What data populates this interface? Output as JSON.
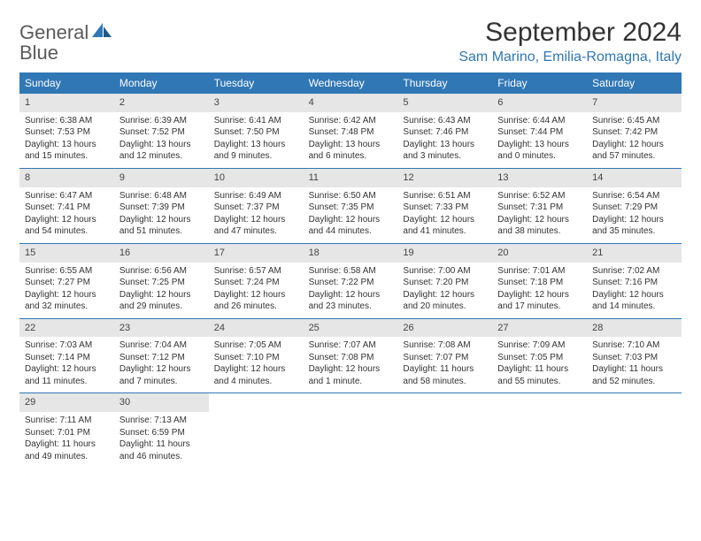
{
  "logo": {
    "general": "General",
    "blue": "Blue"
  },
  "title": "September 2024",
  "location": "Sam Marino, Emilia-Romagna, Italy",
  "colors": {
    "header_bg": "#3077b5",
    "header_text": "#ffffff",
    "date_bg": "#e6e6e6",
    "text": "#333333",
    "location": "#3077b5",
    "divider": "#3077b5"
  },
  "day_names": [
    "Sunday",
    "Monday",
    "Tuesday",
    "Wednesday",
    "Thursday",
    "Friday",
    "Saturday"
  ],
  "weeks": [
    [
      {
        "n": "1",
        "sr": "6:38 AM",
        "ss": "7:53 PM",
        "dl": "13 hours and 15 minutes."
      },
      {
        "n": "2",
        "sr": "6:39 AM",
        "ss": "7:52 PM",
        "dl": "13 hours and 12 minutes."
      },
      {
        "n": "3",
        "sr": "6:41 AM",
        "ss": "7:50 PM",
        "dl": "13 hours and 9 minutes."
      },
      {
        "n": "4",
        "sr": "6:42 AM",
        "ss": "7:48 PM",
        "dl": "13 hours and 6 minutes."
      },
      {
        "n": "5",
        "sr": "6:43 AM",
        "ss": "7:46 PM",
        "dl": "13 hours and 3 minutes."
      },
      {
        "n": "6",
        "sr": "6:44 AM",
        "ss": "7:44 PM",
        "dl": "13 hours and 0 minutes."
      },
      {
        "n": "7",
        "sr": "6:45 AM",
        "ss": "7:42 PM",
        "dl": "12 hours and 57 minutes."
      }
    ],
    [
      {
        "n": "8",
        "sr": "6:47 AM",
        "ss": "7:41 PM",
        "dl": "12 hours and 54 minutes."
      },
      {
        "n": "9",
        "sr": "6:48 AM",
        "ss": "7:39 PM",
        "dl": "12 hours and 51 minutes."
      },
      {
        "n": "10",
        "sr": "6:49 AM",
        "ss": "7:37 PM",
        "dl": "12 hours and 47 minutes."
      },
      {
        "n": "11",
        "sr": "6:50 AM",
        "ss": "7:35 PM",
        "dl": "12 hours and 44 minutes."
      },
      {
        "n": "12",
        "sr": "6:51 AM",
        "ss": "7:33 PM",
        "dl": "12 hours and 41 minutes."
      },
      {
        "n": "13",
        "sr": "6:52 AM",
        "ss": "7:31 PM",
        "dl": "12 hours and 38 minutes."
      },
      {
        "n": "14",
        "sr": "6:54 AM",
        "ss": "7:29 PM",
        "dl": "12 hours and 35 minutes."
      }
    ],
    [
      {
        "n": "15",
        "sr": "6:55 AM",
        "ss": "7:27 PM",
        "dl": "12 hours and 32 minutes."
      },
      {
        "n": "16",
        "sr": "6:56 AM",
        "ss": "7:25 PM",
        "dl": "12 hours and 29 minutes."
      },
      {
        "n": "17",
        "sr": "6:57 AM",
        "ss": "7:24 PM",
        "dl": "12 hours and 26 minutes."
      },
      {
        "n": "18",
        "sr": "6:58 AM",
        "ss": "7:22 PM",
        "dl": "12 hours and 23 minutes."
      },
      {
        "n": "19",
        "sr": "7:00 AM",
        "ss": "7:20 PM",
        "dl": "12 hours and 20 minutes."
      },
      {
        "n": "20",
        "sr": "7:01 AM",
        "ss": "7:18 PM",
        "dl": "12 hours and 17 minutes."
      },
      {
        "n": "21",
        "sr": "7:02 AM",
        "ss": "7:16 PM",
        "dl": "12 hours and 14 minutes."
      }
    ],
    [
      {
        "n": "22",
        "sr": "7:03 AM",
        "ss": "7:14 PM",
        "dl": "12 hours and 11 minutes."
      },
      {
        "n": "23",
        "sr": "7:04 AM",
        "ss": "7:12 PM",
        "dl": "12 hours and 7 minutes."
      },
      {
        "n": "24",
        "sr": "7:05 AM",
        "ss": "7:10 PM",
        "dl": "12 hours and 4 minutes."
      },
      {
        "n": "25",
        "sr": "7:07 AM",
        "ss": "7:08 PM",
        "dl": "12 hours and 1 minute."
      },
      {
        "n": "26",
        "sr": "7:08 AM",
        "ss": "7:07 PM",
        "dl": "11 hours and 58 minutes."
      },
      {
        "n": "27",
        "sr": "7:09 AM",
        "ss": "7:05 PM",
        "dl": "11 hours and 55 minutes."
      },
      {
        "n": "28",
        "sr": "7:10 AM",
        "ss": "7:03 PM",
        "dl": "11 hours and 52 minutes."
      }
    ],
    [
      {
        "n": "29",
        "sr": "7:11 AM",
        "ss": "7:01 PM",
        "dl": "11 hours and 49 minutes."
      },
      {
        "n": "30",
        "sr": "7:13 AM",
        "ss": "6:59 PM",
        "dl": "11 hours and 46 minutes."
      },
      null,
      null,
      null,
      null,
      null
    ]
  ]
}
